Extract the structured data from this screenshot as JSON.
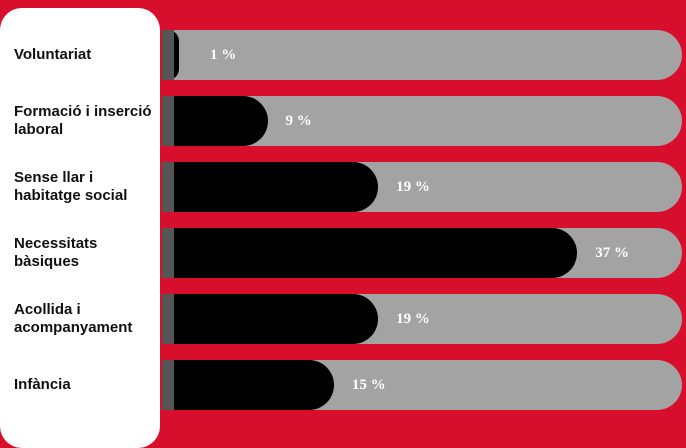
{
  "chart_data": {
    "type": "bar",
    "orientation": "horizontal",
    "categories": [
      "Voluntariat",
      "Formació i inserció laboral",
      "Sense llar i habitatge social",
      "Necessitats bàsiques",
      "Acollida i acompanyament",
      "Infància"
    ],
    "values": [
      1,
      9,
      19,
      37,
      19,
      15
    ],
    "value_labels": [
      "1 %",
      "9 %",
      "19 %",
      "37 %",
      "19 %",
      "15 %"
    ],
    "color": "#000000"
  }
}
